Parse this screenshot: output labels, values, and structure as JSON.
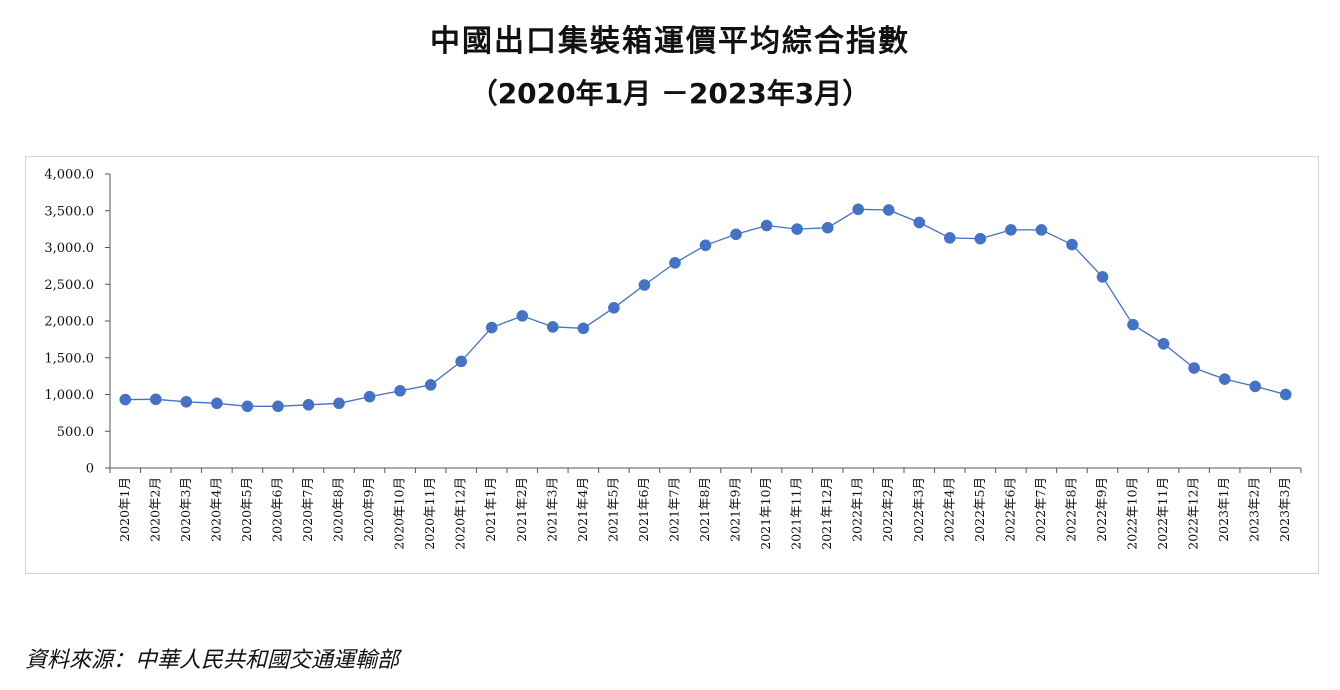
{
  "title": "中國出口集裝箱運價平均綜合指數",
  "subtitle": "（2020年1月 －2023年3月）",
  "source": "資料來源：中華人民共和國交通運輸部",
  "chart_data": {
    "type": "line",
    "title": "中國出口集裝箱運價平均綜合指數",
    "subtitle": "（2020年1月 －2023年3月）",
    "xlabel": "",
    "ylabel": "",
    "ylim": [
      0,
      4000
    ],
    "yticks": [
      0,
      500,
      1000,
      1500,
      2000,
      2500,
      3000,
      3500,
      4000
    ],
    "ytick_labels": [
      "0",
      "500.0",
      "1,000.0",
      "1,500.0",
      "2,000.0",
      "2,500.0",
      "3,000.0",
      "3,500.0",
      "4,000.0"
    ],
    "grid": false,
    "legend": "none",
    "line_color": "#4472C4",
    "marker_color": "#4472C4",
    "categories": [
      "2020年1月",
      "2020年2月",
      "2020年3月",
      "2020年4月",
      "2020年5月",
      "2020年6月",
      "2020年7月",
      "2020年8月",
      "2020年9月",
      "2020年10月",
      "2020年11月",
      "2020年12月",
      "2021年1月",
      "2021年2月",
      "2021年3月",
      "2021年4月",
      "2021年5月",
      "2021年6月",
      "2021年7月",
      "2021年8月",
      "2021年9月",
      "2021年10月",
      "2021年11月",
      "2021年12月",
      "2022年1月",
      "2022年2月",
      "2022年3月",
      "2022年4月",
      "2022年5月",
      "2022年6月",
      "2022年7月",
      "2022年8月",
      "2022年9月",
      "2022年10月",
      "2022年11月",
      "2022年12月",
      "2023年1月",
      "2023年2月",
      "2023年3月"
    ],
    "series": [
      {
        "values": [
          930,
          935,
          900,
          880,
          840,
          840,
          860,
          880,
          970,
          1050,
          1130,
          1450,
          1910,
          2070,
          1920,
          1900,
          2180,
          2490,
          2790,
          3030,
          3180,
          3300,
          3250,
          3270,
          3520,
          3510,
          3340,
          3130,
          3120,
          3240,
          3240,
          3040,
          2600,
          1950,
          1690,
          1360,
          1210,
          1110,
          1000
        ]
      }
    ]
  }
}
